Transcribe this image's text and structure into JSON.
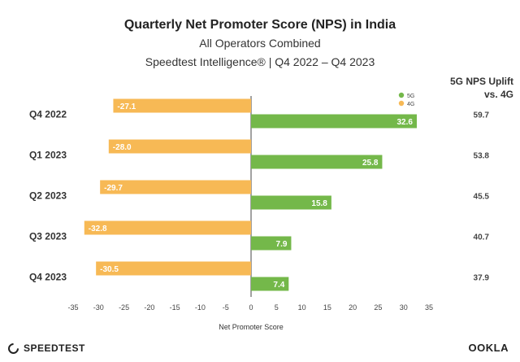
{
  "chart_data": {
    "type": "bar",
    "title": "Quarterly Net Promoter Score (NPS) in India",
    "subtitle": "All Operators Combined",
    "subtitle2": "Speedtest Intelligence® | Q4 2022 – Q4 2023",
    "xlabel": "Net Promoter Score",
    "xlim": [
      -35,
      35
    ],
    "xticks": [
      -35,
      -30,
      -25,
      -20,
      -15,
      -10,
      -5,
      0,
      5,
      10,
      15,
      20,
      25,
      30,
      35
    ],
    "categories": [
      "Q4 2022",
      "Q1 2023",
      "Q2 2023",
      "Q3 2023",
      "Q4 2023"
    ],
    "series": [
      {
        "name": "4G",
        "color": "#f7b955",
        "values": [
          -27.1,
          -28.0,
          -29.7,
          -32.8,
          -30.5
        ],
        "labels": [
          "-27.1",
          "-28.0",
          "-29.7",
          "-32.8",
          "-30.5"
        ]
      },
      {
        "name": "5G",
        "color": "#74b84a",
        "values": [
          32.6,
          25.8,
          15.8,
          7.9,
          7.4
        ],
        "labels": [
          "32.6",
          "25.8",
          "15.8",
          "7.9",
          "7.4"
        ]
      }
    ],
    "uplift_header": [
      "5G NPS Uplift",
      "vs. 4G"
    ],
    "uplift": [
      "59.7",
      "53.8",
      "45.5",
      "40.7",
      "37.9"
    ],
    "legend_position": "top-right",
    "grid": false
  },
  "footer": {
    "left_logo": "SPEEDTEST",
    "right_logo": "OOKLA"
  }
}
